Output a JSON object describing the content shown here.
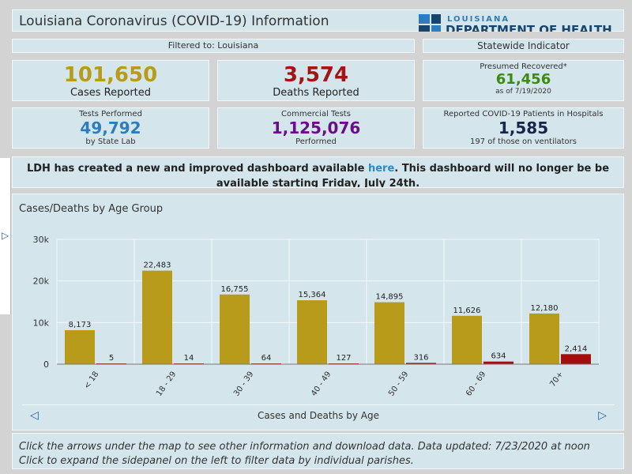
{
  "header": {
    "title": "Louisiana Coronavirus (COVID-19) Information",
    "logo_top": "LOUISIANA",
    "logo_bottom": "DEPARTMENT OF HEALTH"
  },
  "filter": {
    "label": "Filtered to: Louisiana"
  },
  "statewide": {
    "label": "Statewide Indicator"
  },
  "cards": {
    "cases": {
      "value": "101,650",
      "label": "Cases Reported"
    },
    "deaths": {
      "value": "3,574",
      "label": "Deaths Reported"
    },
    "recovered": {
      "title": "Presumed Recovered*",
      "value": "61,456",
      "sub": "as of 7/19/2020"
    },
    "tests": {
      "title": "Tests Performed",
      "value": "49,792",
      "sub": "by State Lab"
    },
    "commercial": {
      "title": "Commercial Tests",
      "value": "1,125,076",
      "sub": "Performed"
    },
    "hospital": {
      "title": "Reported COVID-19 Patients in Hospitals",
      "value": "1,585",
      "sub": "197 of those on ventilators"
    }
  },
  "notice": {
    "before": "LDH has created a new and improved dashboard available ",
    "link": "here",
    "after": ". This dashboard will no longer be be available starting Friday, July 24th."
  },
  "chart": {
    "panel_title": "Cases/Deaths by Age Group",
    "footer_label": "Cases and Deaths by Age"
  },
  "chart_data": {
    "type": "bar",
    "title": "Cases/Deaths by Age Group",
    "xlabel": "Cases and Deaths by Age",
    "ylabel": "",
    "ylim": [
      0,
      30000
    ],
    "yticks": [
      "0",
      "10k",
      "20k",
      "30k"
    ],
    "categories": [
      "< 18",
      "18 - 29",
      "30 - 39",
      "40 - 49",
      "50 - 59",
      "60 - 69",
      "70+"
    ],
    "series": [
      {
        "values": [
          8173,
          22483,
          16755,
          15364,
          14895,
          11626,
          12180
        ],
        "labels": [
          "8,173",
          "22,483",
          "16,755",
          "15,364",
          "14,895",
          "11,626",
          "12,180"
        ],
        "color": "#b89b1a"
      },
      {
        "values": [
          5,
          14,
          64,
          127,
          316,
          634,
          2414
        ],
        "labels": [
          "5",
          "14",
          "64",
          "127",
          "316",
          "634",
          "2,414"
        ],
        "color": "#a30d0d"
      }
    ],
    "grid": true
  },
  "bottom": {
    "line1": "Click the arrows under the map to see other information and download data. Data updated: 7/23/2020 at noon",
    "line2": "Click to expand the sidepanel on the left to filter data by individual parishes."
  },
  "colors": {
    "panel": "#d4e6ec",
    "background": "#d3d3d3",
    "cases": "#b89b1a",
    "deaths": "#a31414",
    "recovered": "#3b8a12",
    "tests": "#2d7dbe",
    "commercial": "#6a0d8a",
    "hospital": "#17264a"
  }
}
